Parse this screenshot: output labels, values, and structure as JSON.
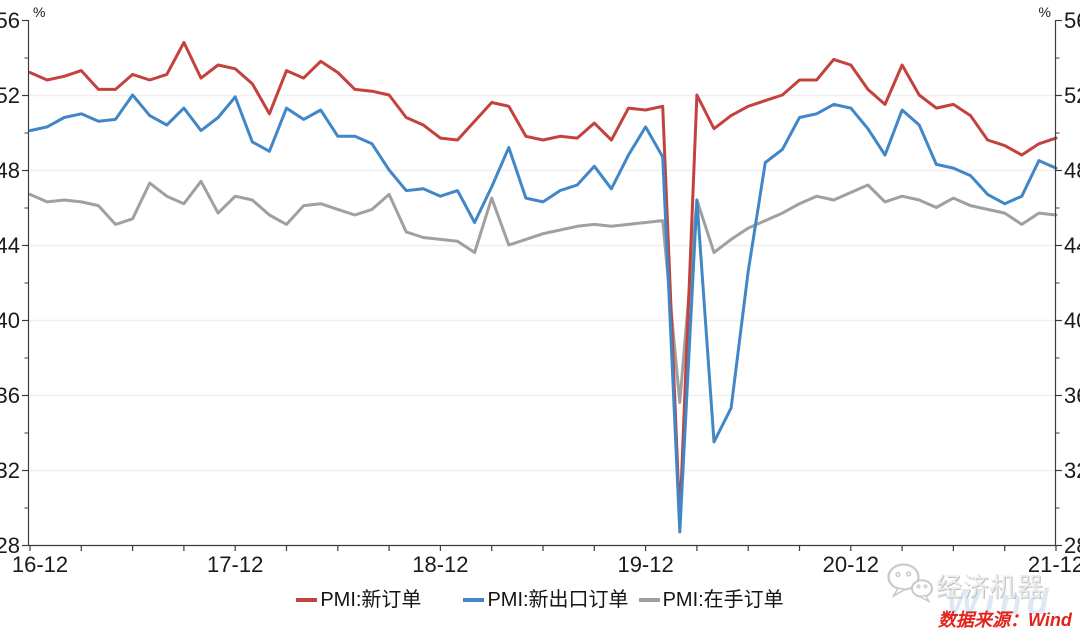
{
  "chart_data": {
    "type": "line",
    "title": "",
    "unit_left": "%",
    "unit_right": "%",
    "ylim": [
      28,
      56
    ],
    "yticks": [
      28,
      32,
      36,
      40,
      44,
      48,
      52,
      56
    ],
    "grid": "horizontal",
    "legend_position": "bottom",
    "x_labels": [
      "16-12",
      "17-12",
      "18-12",
      "19-12",
      "20-12",
      "21-12"
    ],
    "x_label_indices": [
      0,
      12,
      24,
      36,
      48,
      60
    ],
    "x_months": [
      "2016-12",
      "2017-01",
      "2017-02",
      "2017-03",
      "2017-04",
      "2017-05",
      "2017-06",
      "2017-07",
      "2017-08",
      "2017-09",
      "2017-10",
      "2017-11",
      "2017-12",
      "2018-01",
      "2018-02",
      "2018-03",
      "2018-04",
      "2018-05",
      "2018-06",
      "2018-07",
      "2018-08",
      "2018-09",
      "2018-10",
      "2018-11",
      "2018-12",
      "2019-01",
      "2019-02",
      "2019-03",
      "2019-04",
      "2019-05",
      "2019-06",
      "2019-07",
      "2019-08",
      "2019-09",
      "2019-10",
      "2019-11",
      "2019-12",
      "2020-01",
      "2020-02",
      "2020-03",
      "2020-04",
      "2020-05",
      "2020-06",
      "2020-07",
      "2020-08",
      "2020-09",
      "2020-10",
      "2020-11",
      "2020-12",
      "2021-01",
      "2021-02",
      "2021-03",
      "2021-04",
      "2021-05",
      "2021-06",
      "2021-07",
      "2021-08",
      "2021-09",
      "2021-10",
      "2021-11",
      "2021-12"
    ],
    "series": [
      {
        "name": "PMI:新订单",
        "color": "#c3423d",
        "values": [
          53.2,
          52.8,
          53.0,
          53.3,
          52.3,
          52.3,
          53.1,
          52.8,
          53.1,
          54.8,
          52.9,
          53.6,
          53.4,
          52.6,
          51.0,
          53.3,
          52.9,
          53.8,
          53.2,
          52.3,
          52.2,
          52.0,
          50.8,
          50.4,
          49.7,
          49.6,
          50.6,
          51.6,
          51.4,
          49.8,
          49.6,
          49.8,
          49.7,
          50.5,
          49.6,
          51.3,
          51.2,
          51.4,
          29.3,
          52.0,
          50.2,
          50.9,
          51.4,
          51.7,
          52.0,
          52.8,
          52.8,
          53.9,
          53.6,
          52.3,
          51.5,
          53.6,
          52.0,
          51.3,
          51.5,
          50.9,
          49.6,
          49.3,
          48.8,
          49.4,
          49.7
        ]
      },
      {
        "name": "PMI:新出口订单",
        "color": "#4187c7",
        "values": [
          50.1,
          50.3,
          50.8,
          51.0,
          50.6,
          50.7,
          52.0,
          50.9,
          50.4,
          51.3,
          50.1,
          50.8,
          51.9,
          49.5,
          49.0,
          51.3,
          50.7,
          51.2,
          49.8,
          49.8,
          49.4,
          48.0,
          46.9,
          47.0,
          46.6,
          46.9,
          45.2,
          47.1,
          49.2,
          46.5,
          46.3,
          46.9,
          47.2,
          48.2,
          47.0,
          48.8,
          50.3,
          48.7,
          28.7,
          46.4,
          33.5,
          35.3,
          42.6,
          48.4,
          49.1,
          50.8,
          51.0,
          51.5,
          51.3,
          50.2,
          48.8,
          51.2,
          50.4,
          48.3,
          48.1,
          47.7,
          46.7,
          46.2,
          46.6,
          48.5,
          48.1
        ]
      },
      {
        "name": "PMI:在手订单",
        "color": "#a0a0a0",
        "values": [
          46.7,
          46.3,
          46.4,
          46.3,
          46.1,
          45.1,
          45.4,
          47.3,
          46.6,
          46.2,
          47.4,
          45.7,
          46.6,
          46.4,
          45.6,
          45.1,
          46.1,
          46.2,
          45.9,
          45.6,
          45.9,
          46.7,
          44.7,
          44.4,
          44.3,
          44.2,
          43.6,
          46.5,
          44.0,
          44.3,
          44.6,
          44.8,
          45.0,
          45.1,
          45.0,
          45.1,
          45.2,
          45.3,
          35.6,
          46.4,
          43.6,
          44.3,
          44.9,
          45.3,
          45.7,
          46.2,
          46.6,
          46.4,
          46.8,
          47.2,
          46.3,
          46.6,
          46.4,
          46.0,
          46.5,
          46.1,
          45.9,
          45.7,
          45.1,
          45.7,
          45.6
        ]
      }
    ]
  },
  "footer": {
    "watermark_brand": "经济机器",
    "watermark_overlay": "Wind",
    "source_label": "数据来源：Wind"
  },
  "colors": {
    "red_line": "#c3423d",
    "blue_line": "#4187c7",
    "gray_line": "#a0a0a0",
    "axis": "#3c3c3c",
    "grid": "#efefef",
    "tick_label": "#1a1a1a",
    "source_text": "#e3231d",
    "brand_watermark": "#ececec",
    "wind_watermark": "#6f9bd2"
  }
}
